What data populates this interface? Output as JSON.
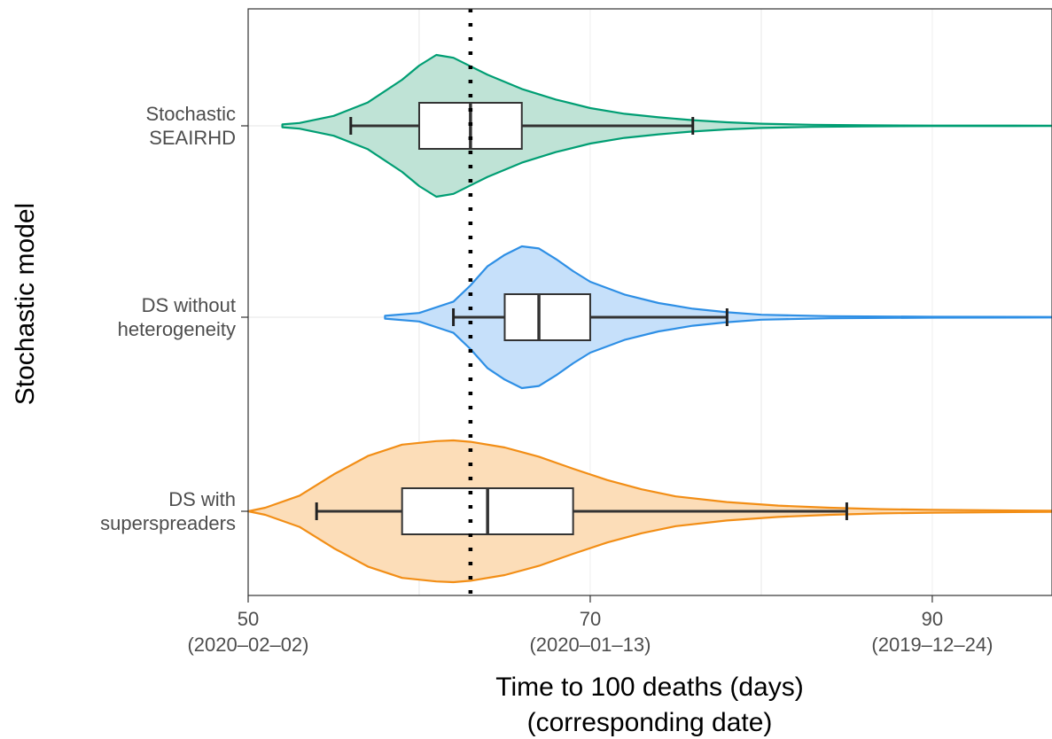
{
  "chart_data": {
    "type": "violin",
    "ylabel": "Stochastic model",
    "xlabel_line1": "Time to 100 deaths (days)",
    "xlabel_line2": "(corresponding date)",
    "xlim": [
      50,
      97
    ],
    "x_ticks": [
      {
        "value": 50,
        "label": "50",
        "date": "(2020–02–02)"
      },
      {
        "value": 70,
        "label": "70",
        "date": "(2020–01–13)"
      },
      {
        "value": 90,
        "label": "90",
        "date": "(2019–12–24)"
      }
    ],
    "reference_line": {
      "x": 63,
      "style": "dotted",
      "color": "#000000"
    },
    "grid": true,
    "series": [
      {
        "label_line1": "Stochastic",
        "label_line2": "SEAIRHD",
        "color": "#009E73",
        "fill": "#BFE3D6",
        "box": {
          "whisker_low": 56,
          "q1": 60,
          "median": 63,
          "q3": 66,
          "whisker_high": 76
        },
        "density": [
          [
            52,
            0.02
          ],
          [
            53,
            0.04
          ],
          [
            55,
            0.14
          ],
          [
            57,
            0.33
          ],
          [
            59,
            0.65
          ],
          [
            60,
            0.85
          ],
          [
            61,
            1.0
          ],
          [
            62,
            0.96
          ],
          [
            63,
            0.84
          ],
          [
            64,
            0.72
          ],
          [
            65,
            0.62
          ],
          [
            66,
            0.52
          ],
          [
            68,
            0.37
          ],
          [
            70,
            0.25
          ],
          [
            72,
            0.17
          ],
          [
            74,
            0.12
          ],
          [
            76,
            0.08
          ],
          [
            78,
            0.05
          ],
          [
            80,
            0.03
          ],
          [
            83,
            0.015
          ],
          [
            86,
            0.008
          ],
          [
            90,
            0.004
          ],
          [
            97,
            0.003
          ]
        ]
      },
      {
        "label_line1": "DS without",
        "label_line2": "heterogeneity",
        "color": "#2E8FE5",
        "fill": "#C6E0FA",
        "box": {
          "whisker_low": 62,
          "q1": 65,
          "median": 67,
          "q3": 70,
          "whisker_high": 78
        },
        "density": [
          [
            58,
            0.02
          ],
          [
            60,
            0.06
          ],
          [
            62,
            0.22
          ],
          [
            63,
            0.45
          ],
          [
            64,
            0.72
          ],
          [
            65,
            0.88
          ],
          [
            66,
            1.0
          ],
          [
            67,
            0.97
          ],
          [
            68,
            0.82
          ],
          [
            69,
            0.65
          ],
          [
            70,
            0.5
          ],
          [
            72,
            0.32
          ],
          [
            74,
            0.2
          ],
          [
            76,
            0.12
          ],
          [
            78,
            0.07
          ],
          [
            80,
            0.035
          ],
          [
            84,
            0.015
          ],
          [
            90,
            0.006
          ],
          [
            97,
            0.004
          ]
        ]
      },
      {
        "label_line1": "DS with",
        "label_line2": "superspreaders",
        "color": "#F28E16",
        "fill": "#FCDDB8",
        "box": {
          "whisker_low": 54,
          "q1": 59,
          "median": 64,
          "q3": 69,
          "whisker_high": 85
        },
        "density": [
          [
            50,
            0.0
          ],
          [
            51,
            0.05
          ],
          [
            53,
            0.22
          ],
          [
            55,
            0.52
          ],
          [
            57,
            0.78
          ],
          [
            59,
            0.94
          ],
          [
            61,
            0.99
          ],
          [
            62,
            1.0
          ],
          [
            63,
            0.98
          ],
          [
            65,
            0.9
          ],
          [
            67,
            0.77
          ],
          [
            69,
            0.6
          ],
          [
            71,
            0.44
          ],
          [
            73,
            0.31
          ],
          [
            75,
            0.21
          ],
          [
            78,
            0.13
          ],
          [
            81,
            0.08
          ],
          [
            84,
            0.05
          ],
          [
            87,
            0.03
          ],
          [
            90,
            0.02
          ],
          [
            94,
            0.012
          ],
          [
            97,
            0.008
          ]
        ]
      }
    ]
  }
}
